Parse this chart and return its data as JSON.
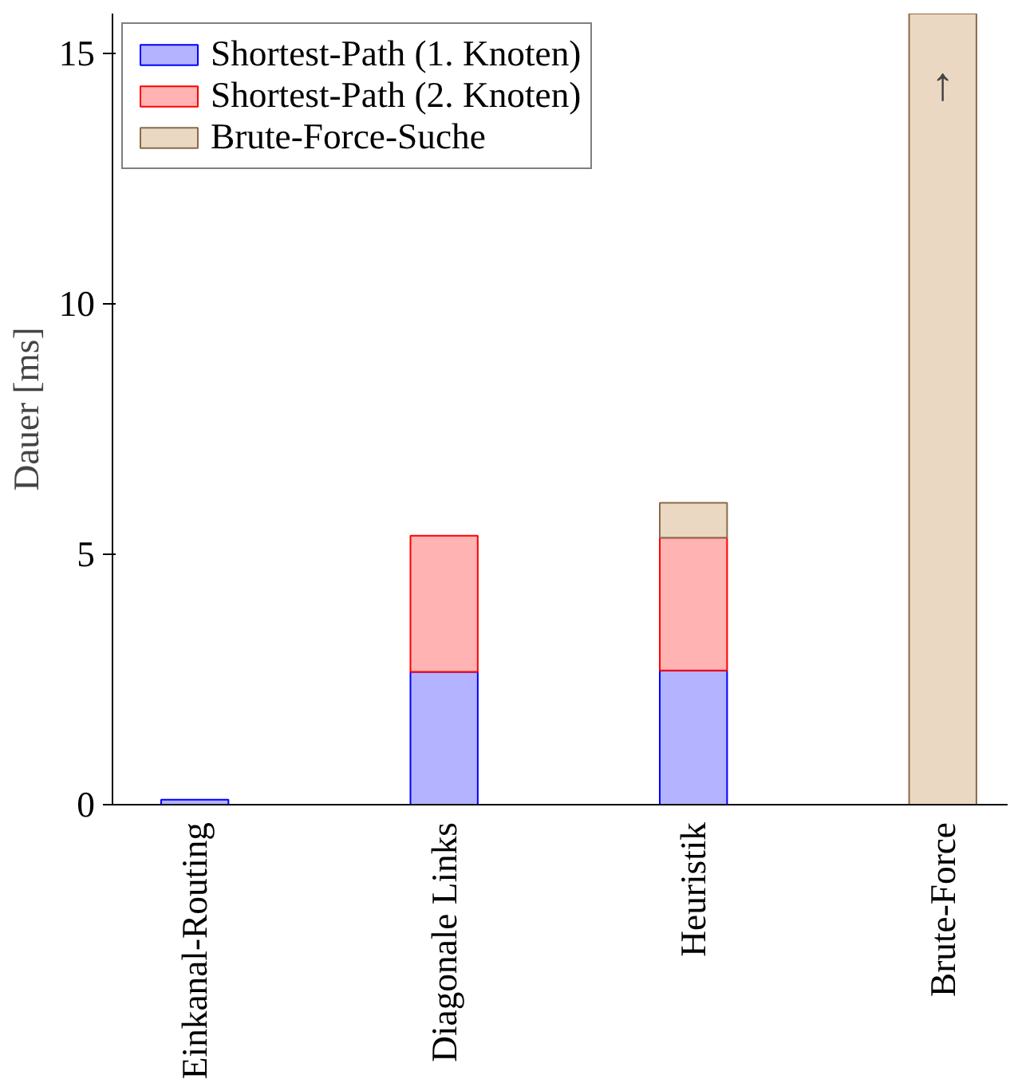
{
  "chart_data": {
    "type": "bar",
    "stacked": true,
    "ylabel": "Dauer [ms]",
    "categories": [
      "Einkanal-Routing",
      "Diagonale Links",
      "Heuristik",
      "Brute-Force"
    ],
    "series": [
      {
        "name": "Shortest-Path (1. Knoten)",
        "color": "#b3b3ff",
        "values": [
          0.1,
          2.65,
          2.68,
          null
        ]
      },
      {
        "name": "Shortest-Path (2. Knoten)",
        "color": "#ffb3b3",
        "values": [
          null,
          2.72,
          2.65,
          null
        ]
      },
      {
        "name": "Brute-Force-Suche",
        "color": "#ead8c2",
        "values": [
          null,
          null,
          0.7,
          15.8
        ]
      }
    ],
    "ylim": [
      0,
      15.8
    ],
    "yticks": [
      0,
      5,
      10,
      15
    ],
    "grid": false,
    "legend": "top left",
    "annotations": [
      "↑"
    ]
  }
}
